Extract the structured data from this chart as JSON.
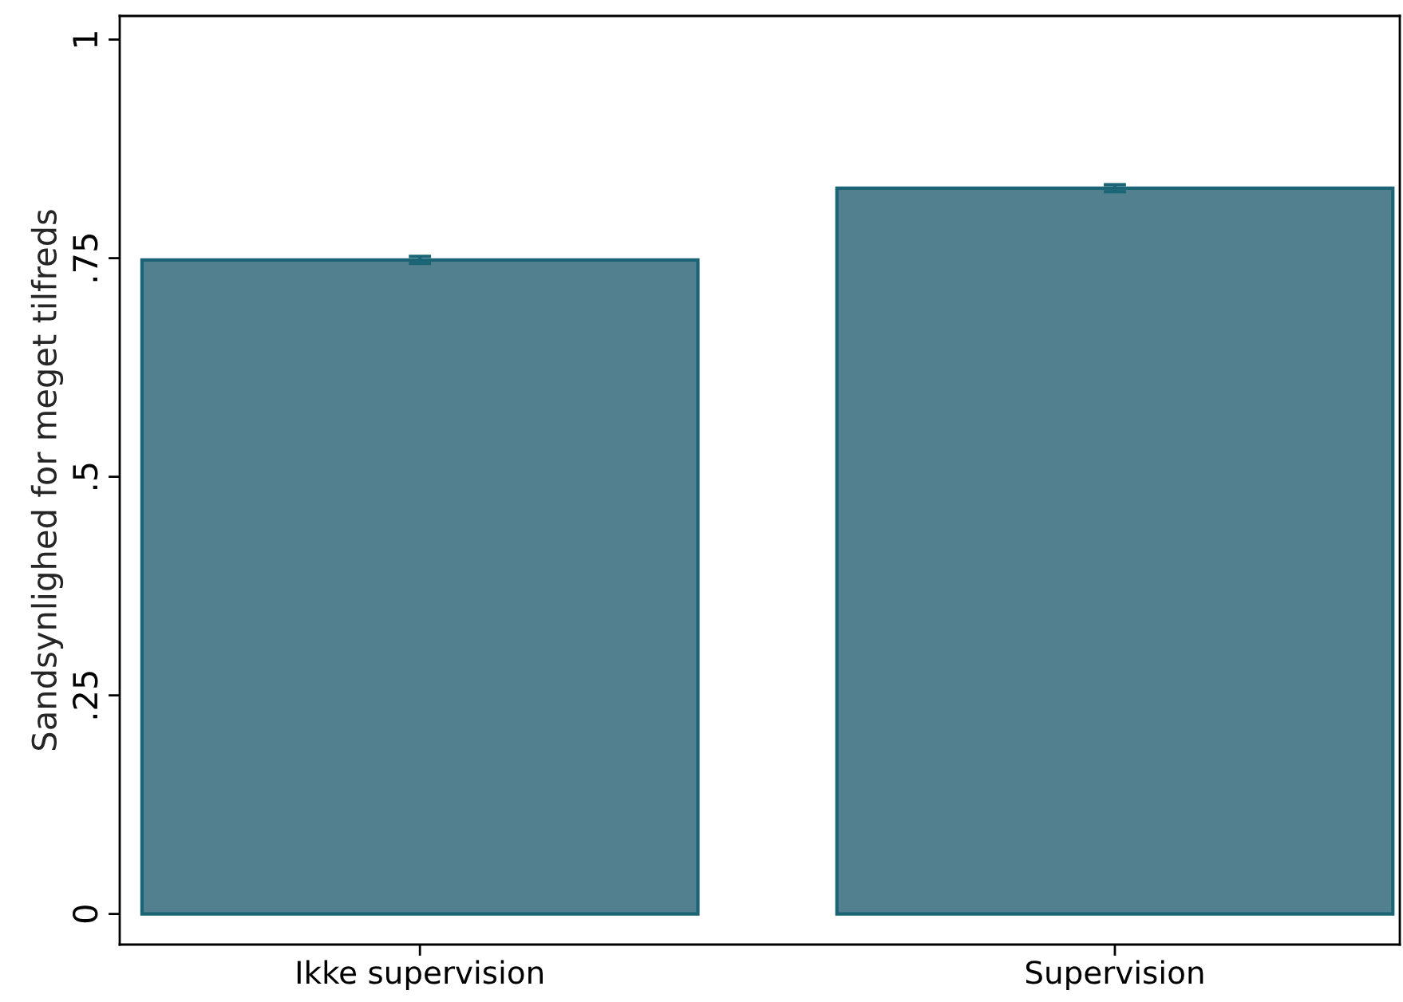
{
  "chart_data": {
    "type": "bar",
    "ylabel": "Sandsynlighed for meget tilfreds",
    "categories": [
      "Ikke supervision",
      "Supervision"
    ],
    "values": [
      0.748,
      0.83
    ],
    "errors": [
      0.004,
      0.004
    ],
    "color": "#53808f",
    "ylim": [
      -0.035,
      1.027
    ],
    "yticks": [
      {
        "value": 0,
        "label": "0"
      },
      {
        "value": 0.25,
        "label": ".25"
      },
      {
        "value": 0.5,
        "label": ".5"
      },
      {
        "value": 0.75,
        "label": ".75"
      },
      {
        "value": 1,
        "label": "1"
      }
    ],
    "grid": false
  }
}
